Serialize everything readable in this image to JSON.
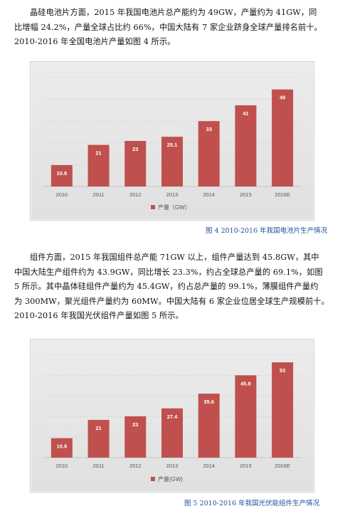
{
  "paragraphs": [
    {
      "lines": [
        "晶硅电池片方面，2015 年我国电池片总产能约为 49GW，产量约为 41GW，同",
        "比增幅 24.2%，产量全球占比约 66%，中国大陆有 7 家企业跻身全球产量排名前十。",
        "2010-2016 年全国电池片产量如图 4 所示。"
      ]
    },
    {
      "lines": [
        "组件方面，2015 年我国组件总产能 71GW 以上，组件产量达到 45.8GW，其中",
        "中国大陆生产组件约为 43.9GW，同比增长 23.3%，约占全球总产量的 69.1%，如图",
        "5 所示。其中晶体硅组件产量约为 45.4GW，约占总产量的 99.1%，薄膜组件产量约",
        "为 300MW，聚光组件产量约为 60MW。中国大陆有 6 家企业位居全球生产规模前十。",
        "2010-2016 年我国光伏组件产量如图 5 所示。"
      ]
    }
  ],
  "chart_data": [
    {
      "type": "bar",
      "categories": [
        "2010",
        "2011",
        "2012",
        "2013",
        "2014",
        "2015",
        "2016E"
      ],
      "values": [
        10.8,
        21,
        23,
        25.1,
        33,
        41,
        49
      ],
      "value_labels": [
        "10.8",
        "21",
        "23",
        "25.1",
        "33",
        "41",
        "49"
      ],
      "legend": "产量（GW）",
      "bar_color": "#c0504d",
      "ylim": [
        0,
        55
      ],
      "caption": "图 4 2010-2016 年我国电池片生产情况"
    },
    {
      "type": "bar",
      "categories": [
        "2010",
        "2011",
        "2012",
        "2013",
        "2014",
        "2015",
        "2016E"
      ],
      "values": [
        10.8,
        21,
        23,
        27.4,
        35.6,
        45.8,
        53
      ],
      "value_labels": [
        "10.8",
        "21",
        "23",
        "27.4",
        "35.6",
        "45.8",
        "53"
      ],
      "legend": "产量(GW)",
      "bar_color": "#c0504d",
      "ylim": [
        0,
        57
      ],
      "caption": "图 5 2010-2016 年我国光伏能组件生产情况"
    }
  ]
}
